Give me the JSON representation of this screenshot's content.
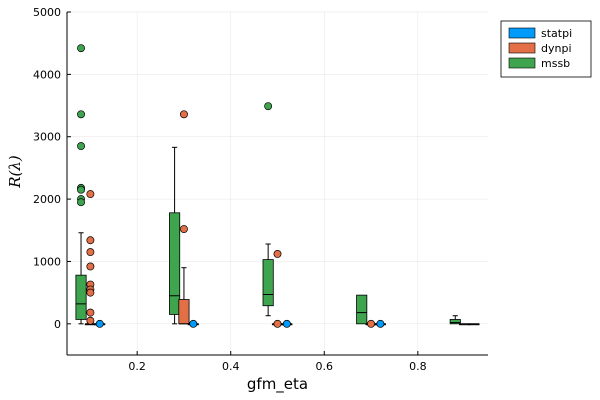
{
  "chart_data": {
    "type": "boxplot",
    "title": "",
    "xlabel": "gfm_eta",
    "ylabel_prefix": "R",
    "ylabel_arg": "λ",
    "xlim": [
      0.05,
      0.95
    ],
    "ylim": [
      -500,
      5000
    ],
    "xticks": [
      0.2,
      0.4,
      0.6,
      0.8
    ],
    "xtick_labels": [
      "0.2",
      "0.4",
      "0.6",
      "0.8"
    ],
    "yticks": [
      0,
      1000,
      2000,
      3000,
      4000,
      5000
    ],
    "ytick_labels": [
      "0",
      "1000",
      "2000",
      "3000",
      "4000",
      "5000"
    ],
    "grid": true,
    "legend_position": "top-right",
    "box_width": 0.022,
    "series": [
      {
        "name": "statpi",
        "color": "#009AFA",
        "offset": 0.02,
        "boxes": [
          {
            "x": 0.1,
            "q1": 0,
            "median": 0,
            "q3": 0,
            "whisker_low": 0,
            "whisker_high": 0,
            "outliers": [
              0
            ]
          },
          {
            "x": 0.3,
            "q1": 0,
            "median": 0,
            "q3": 0,
            "whisker_low": 0,
            "whisker_high": 0,
            "outliers": [
              0
            ]
          },
          {
            "x": 0.5,
            "q1": 0,
            "median": 0,
            "q3": 0,
            "whisker_low": 0,
            "whisker_high": 0,
            "outliers": [
              0
            ]
          },
          {
            "x": 0.7,
            "q1": 0,
            "median": 0,
            "q3": 0,
            "whisker_low": 0,
            "whisker_high": 0,
            "outliers": [
              0
            ]
          },
          {
            "x": 0.9,
            "q1": 0,
            "median": 0,
            "q3": 0,
            "whisker_low": 0,
            "whisker_high": 0,
            "outliers": []
          }
        ]
      },
      {
        "name": "dynpi",
        "color": "#E36F47",
        "offset": 0.0,
        "boxes": [
          {
            "x": 0.1,
            "q1": 0,
            "median": 0,
            "q3": 0,
            "whisker_low": 0,
            "whisker_high": 0,
            "outliers": [
              2080,
              1340,
              1150,
              920,
              630,
              550,
              500,
              180,
              50
            ]
          },
          {
            "x": 0.3,
            "q1": 0,
            "median": 0,
            "q3": 390,
            "whisker_low": 0,
            "whisker_high": 900,
            "outliers": [
              3360,
              1520
            ]
          },
          {
            "x": 0.5,
            "q1": 0,
            "median": 0,
            "q3": 0,
            "whisker_low": 0,
            "whisker_high": 0,
            "outliers": [
              1120,
              0
            ]
          },
          {
            "x": 0.7,
            "q1": 0,
            "median": 0,
            "q3": 0,
            "whisker_low": 0,
            "whisker_high": 0,
            "outliers": [
              0
            ]
          },
          {
            "x": 0.9,
            "q1": 0,
            "median": 0,
            "q3": 0,
            "whisker_low": 0,
            "whisker_high": 0,
            "outliers": []
          }
        ]
      },
      {
        "name": "mssb",
        "color": "#3EA44E",
        "offset": -0.02,
        "boxes": [
          {
            "x": 0.1,
            "q1": 70,
            "median": 320,
            "q3": 780,
            "whisker_low": 0,
            "whisker_high": 1460,
            "outliers": [
              4420,
              3360,
              2850,
              2180,
              2150,
              2000,
              1950
            ]
          },
          {
            "x": 0.3,
            "q1": 150,
            "median": 450,
            "q3": 1780,
            "whisker_low": 0,
            "whisker_high": 2830,
            "outliers": []
          },
          {
            "x": 0.5,
            "q1": 290,
            "median": 470,
            "q3": 1030,
            "whisker_low": 130,
            "whisker_high": 1280,
            "outliers": [
              3490
            ]
          },
          {
            "x": 0.7,
            "q1": 0,
            "median": 180,
            "q3": 460,
            "whisker_low": 0,
            "whisker_high": 460,
            "outliers": []
          },
          {
            "x": 0.9,
            "q1": 0,
            "median": 20,
            "q3": 70,
            "whisker_low": 0,
            "whisker_high": 130,
            "outliers": []
          }
        ]
      }
    ]
  }
}
